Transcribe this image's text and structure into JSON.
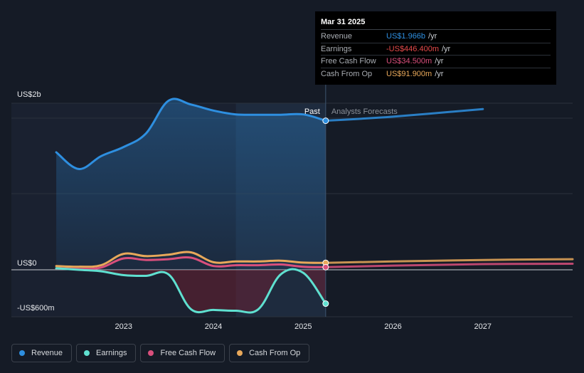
{
  "tooltip": {
    "date": "Mar 31 2025",
    "rows": [
      {
        "label": "Revenue",
        "value": "US$1.966b",
        "unit": "/yr",
        "color": "#2e8fe0"
      },
      {
        "label": "Earnings",
        "value": "-US$446.400m",
        "unit": "/yr",
        "color": "#e84b4b"
      },
      {
        "label": "Free Cash Flow",
        "value": "US$34.500m",
        "unit": "/yr",
        "color": "#d94f7c"
      },
      {
        "label": "Cash From Op",
        "value": "US$91.900m",
        "unit": "/yr",
        "color": "#e8a85a"
      }
    ]
  },
  "regions": {
    "past_label": "Past",
    "forecast_label": "Analysts Forecasts"
  },
  "legend": [
    {
      "label": "Revenue",
      "color": "#2e8fe0"
    },
    {
      "label": "Earnings",
      "color": "#5fe0d0"
    },
    {
      "label": "Free Cash Flow",
      "color": "#d94f7c"
    },
    {
      "label": "Cash From Op",
      "color": "#e8a85a"
    }
  ],
  "chart_data": {
    "type": "line",
    "y_unit": "US$ millions",
    "ylim": [
      -600,
      2000
    ],
    "y_tick_labels": [
      {
        "value": 2000,
        "label": "US$2b"
      },
      {
        "value": 0,
        "label": "US$0"
      },
      {
        "value": -600,
        "label": "-US$600m"
      }
    ],
    "x_tick_labels": [
      "2023",
      "2024",
      "2025",
      "2026",
      "2027"
    ],
    "x_ticks": [
      2023,
      2024,
      2025,
      2026,
      2027
    ],
    "xlim": [
      2021.75,
      2028.0
    ],
    "past_end": 2025.25,
    "highlight_start": 2024.25,
    "series": [
      {
        "name": "Revenue",
        "color": "#2e8fe0",
        "past": [
          [
            2022.25,
            1550
          ],
          [
            2022.5,
            1330
          ],
          [
            2022.75,
            1500
          ],
          [
            2023.0,
            1620
          ],
          [
            2023.25,
            1800
          ],
          [
            2023.5,
            2230
          ],
          [
            2023.75,
            2180
          ],
          [
            2024.0,
            2100
          ],
          [
            2024.25,
            2050
          ],
          [
            2024.5,
            2045
          ],
          [
            2024.75,
            2045
          ],
          [
            2025.0,
            2050
          ],
          [
            2025.25,
            1966
          ]
        ],
        "forecast": [
          [
            2025.25,
            1966
          ],
          [
            2026.0,
            2020
          ],
          [
            2027.0,
            2120
          ]
        ]
      },
      {
        "name": "Earnings",
        "color": "#5fe0d0",
        "past": [
          [
            2022.25,
            20
          ],
          [
            2022.5,
            0
          ],
          [
            2022.75,
            -20
          ],
          [
            2023.0,
            -70
          ],
          [
            2023.25,
            -80
          ],
          [
            2023.5,
            -60
          ],
          [
            2023.75,
            -520
          ],
          [
            2024.0,
            -530
          ],
          [
            2024.25,
            -540
          ],
          [
            2024.5,
            -520
          ],
          [
            2024.75,
            -60
          ],
          [
            2025.0,
            -40
          ],
          [
            2025.25,
            -446.4
          ]
        ],
        "forecast": []
      },
      {
        "name": "Free Cash Flow",
        "color": "#d94f7c",
        "past": [
          [
            2022.25,
            20
          ],
          [
            2022.5,
            10
          ],
          [
            2022.75,
            30
          ],
          [
            2023.0,
            150
          ],
          [
            2023.25,
            130
          ],
          [
            2023.5,
            140
          ],
          [
            2023.75,
            160
          ],
          [
            2024.0,
            50
          ],
          [
            2024.25,
            60
          ],
          [
            2024.5,
            60
          ],
          [
            2024.75,
            70
          ],
          [
            2025.0,
            40
          ],
          [
            2025.25,
            34.5
          ]
        ],
        "forecast": [
          [
            2025.25,
            34.5
          ],
          [
            2026.0,
            55
          ],
          [
            2027.0,
            75
          ],
          [
            2028.0,
            80
          ]
        ]
      },
      {
        "name": "Cash From Op",
        "color": "#e8a85a",
        "past": [
          [
            2022.25,
            50
          ],
          [
            2022.5,
            40
          ],
          [
            2022.75,
            60
          ],
          [
            2023.0,
            210
          ],
          [
            2023.25,
            180
          ],
          [
            2023.5,
            200
          ],
          [
            2023.75,
            230
          ],
          [
            2024.0,
            100
          ],
          [
            2024.25,
            110
          ],
          [
            2024.5,
            110
          ],
          [
            2024.75,
            120
          ],
          [
            2025.0,
            95
          ],
          [
            2025.25,
            91.9
          ]
        ],
        "forecast": [
          [
            2025.25,
            91.9
          ],
          [
            2026.0,
            110
          ],
          [
            2027.0,
            130
          ],
          [
            2028.0,
            140
          ]
        ]
      }
    ]
  }
}
